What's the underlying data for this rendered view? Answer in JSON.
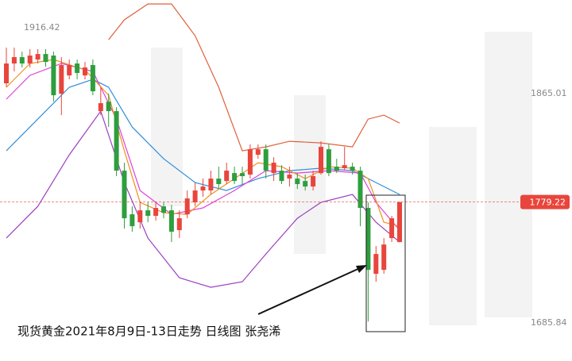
{
  "chart_data": {
    "type": "candlestick",
    "caption": "现货黄金2021年8月9日-13日走势 日线图  张尧浠",
    "ylim": [
      1655,
      1937
    ],
    "yticks": [
      1916.42,
      1865.01,
      1685.84
    ],
    "last_price": 1779.22,
    "up_color": "#e8453c",
    "down_color": "#2e9e3e",
    "ohlc": [
      [
        1871.9,
        1899.8,
        1868.8,
        1887.4
      ],
      [
        1887.4,
        1899.8,
        1881.2,
        1892.4
      ],
      [
        1892.4,
        1896.7,
        1884.3,
        1887.4
      ],
      [
        1887.4,
        1898.6,
        1884.3,
        1893.6
      ],
      [
        1890.5,
        1898.6,
        1887.4,
        1894.8
      ],
      [
        1894.8,
        1898.6,
        1884.9,
        1888.6
      ],
      [
        1893.6,
        1896.7,
        1857.6,
        1862.6
      ],
      [
        1863.8,
        1892.4,
        1847.1,
        1886.2
      ],
      [
        1878.1,
        1890.5,
        1875.0,
        1886.2
      ],
      [
        1887.4,
        1890.5,
        1875.0,
        1880.0
      ],
      [
        1878.1,
        1888.6,
        1875.0,
        1884.3
      ],
      [
        1886.2,
        1890.5,
        1862.6,
        1865.7
      ],
      [
        1850.2,
        1868.8,
        1847.1,
        1856.4
      ],
      [
        1857.6,
        1863.8,
        1837.8,
        1850.2
      ],
      [
        1850.2,
        1853.3,
        1799.4,
        1803.7
      ],
      [
        1803.7,
        1809.9,
        1758.4,
        1766.5
      ],
      [
        1769.6,
        1775.8,
        1756.0,
        1760.3
      ],
      [
        1763.4,
        1778.9,
        1758.4,
        1772.7
      ],
      [
        1772.7,
        1778.9,
        1763.4,
        1768.4
      ],
      [
        1768.4,
        1778.9,
        1764.6,
        1774.6
      ],
      [
        1775.8,
        1778.9,
        1766.5,
        1770.8
      ],
      [
        1772.7,
        1777.0,
        1747.9,
        1756.0
      ],
      [
        1757.2,
        1772.7,
        1751.0,
        1766.5
      ],
      [
        1769.6,
        1788.2,
        1766.5,
        1782.0
      ],
      [
        1778.9,
        1794.4,
        1775.8,
        1788.2
      ],
      [
        1788.2,
        1797.5,
        1783.2,
        1791.3
      ],
      [
        1788.2,
        1803.7,
        1785.1,
        1797.5
      ],
      [
        1797.5,
        1806.8,
        1789.4,
        1793.2
      ],
      [
        1795.6,
        1809.9,
        1793.2,
        1803.7
      ],
      [
        1801.8,
        1806.8,
        1793.2,
        1795.6
      ],
      [
        1801.8,
        1806.8,
        1793.2,
        1799.4
      ],
      [
        1800.6,
        1824.2,
        1797.5,
        1820.4
      ],
      [
        1816.1,
        1824.2,
        1813.0,
        1820.4
      ],
      [
        1820.4,
        1824.2,
        1797.5,
        1803.7
      ],
      [
        1801.8,
        1814.2,
        1795.6,
        1809.9
      ],
      [
        1803.7,
        1808.0,
        1793.2,
        1795.6
      ],
      [
        1797.5,
        1806.8,
        1791.3,
        1800.6
      ],
      [
        1797.5,
        1801.8,
        1789.4,
        1793.2
      ],
      [
        1795.6,
        1800.6,
        1788.2,
        1791.3
      ],
      [
        1791.3,
        1803.7,
        1788.2,
        1799.4
      ],
      [
        1801.8,
        1826.6,
        1800.6,
        1822.3
      ],
      [
        1820.4,
        1824.2,
        1799.4,
        1801.8
      ],
      [
        1806.8,
        1813.0,
        1801.8,
        1803.7
      ],
      [
        1805.6,
        1822.3,
        1803.7,
        1808.0
      ],
      [
        1806.8,
        1809.9,
        1800.6,
        1803.7
      ],
      [
        1803.7,
        1806.8,
        1760.3,
        1774.6
      ],
      [
        1774.6,
        1778.9,
        1685.84,
        1726.2
      ],
      [
        1723.1,
        1744.8,
        1716.9,
        1738.6
      ],
      [
        1726.2,
        1751.0,
        1723.1,
        1746.0
      ],
      [
        1751.0,
        1768.4,
        1747.9,
        1766.5
      ],
      [
        1747.9,
        1777.0,
        1747.9,
        1779.22
      ]
    ],
    "overlays": [
      {
        "color": "#e0603a",
        "x": [
          13,
          15,
          18,
          21,
          24,
          27,
          30,
          33,
          36,
          40,
          44,
          46,
          48,
          50
        ],
        "values": [
          1906.0,
          1921.5,
          1933.9,
          1933.9,
          1909.1,
          1868.8,
          1819.2,
          1822.3,
          1826.6,
          1825.4,
          1822.3,
          1844.0,
          1847.1,
          1840.9
        ]
      },
      {
        "color": "#9b3fc0",
        "x": [
          0,
          4,
          8,
          12,
          15,
          18,
          22,
          26,
          30,
          33,
          37,
          40,
          44,
          47,
          50
        ],
        "values": [
          1751.0,
          1775.8,
          1816.1,
          1850.2,
          1794.4,
          1751.0,
          1720.0,
          1712.6,
          1716.9,
          1738.6,
          1766.5,
          1778.9,
          1785.1,
          1763.4,
          1747.9
        ]
      },
      {
        "color": "#2f8fdc",
        "x": [
          0,
          4,
          8,
          11,
          13,
          16,
          20,
          24,
          28,
          32,
          36,
          40,
          44,
          47,
          50
        ],
        "values": [
          1819.2,
          1844.0,
          1868.8,
          1875.0,
          1868.8,
          1837.8,
          1813.0,
          1794.4,
          1788.2,
          1797.5,
          1803.7,
          1805.6,
          1803.7,
          1794.4,
          1785.1
        ]
      },
      {
        "color": "#e040d8",
        "x": [
          0,
          3,
          7,
          11,
          14,
          17,
          21,
          25,
          29,
          33,
          37,
          41,
          45,
          47,
          50
        ],
        "values": [
          1859.5,
          1878.1,
          1887.4,
          1881.2,
          1844.0,
          1788.2,
          1769.6,
          1774.6,
          1788.2,
          1803.7,
          1801.8,
          1803.7,
          1801.8,
          1778.9,
          1757.2
        ]
      },
      {
        "color": "#f0901e",
        "x": [
          0,
          3,
          6,
          10,
          13,
          15,
          17,
          20,
          23,
          26,
          29,
          32,
          35,
          38,
          41,
          44,
          46,
          48,
          50
        ],
        "values": [
          1868.8,
          1887.4,
          1890.5,
          1882.4,
          1862.6,
          1819.2,
          1778.9,
          1770.8,
          1769.6,
          1785.1,
          1797.5,
          1809.9,
          1806.8,
          1797.5,
          1806.8,
          1805.6,
          1797.5,
          1763.4,
          1760.3
        ]
      }
    ]
  }
}
